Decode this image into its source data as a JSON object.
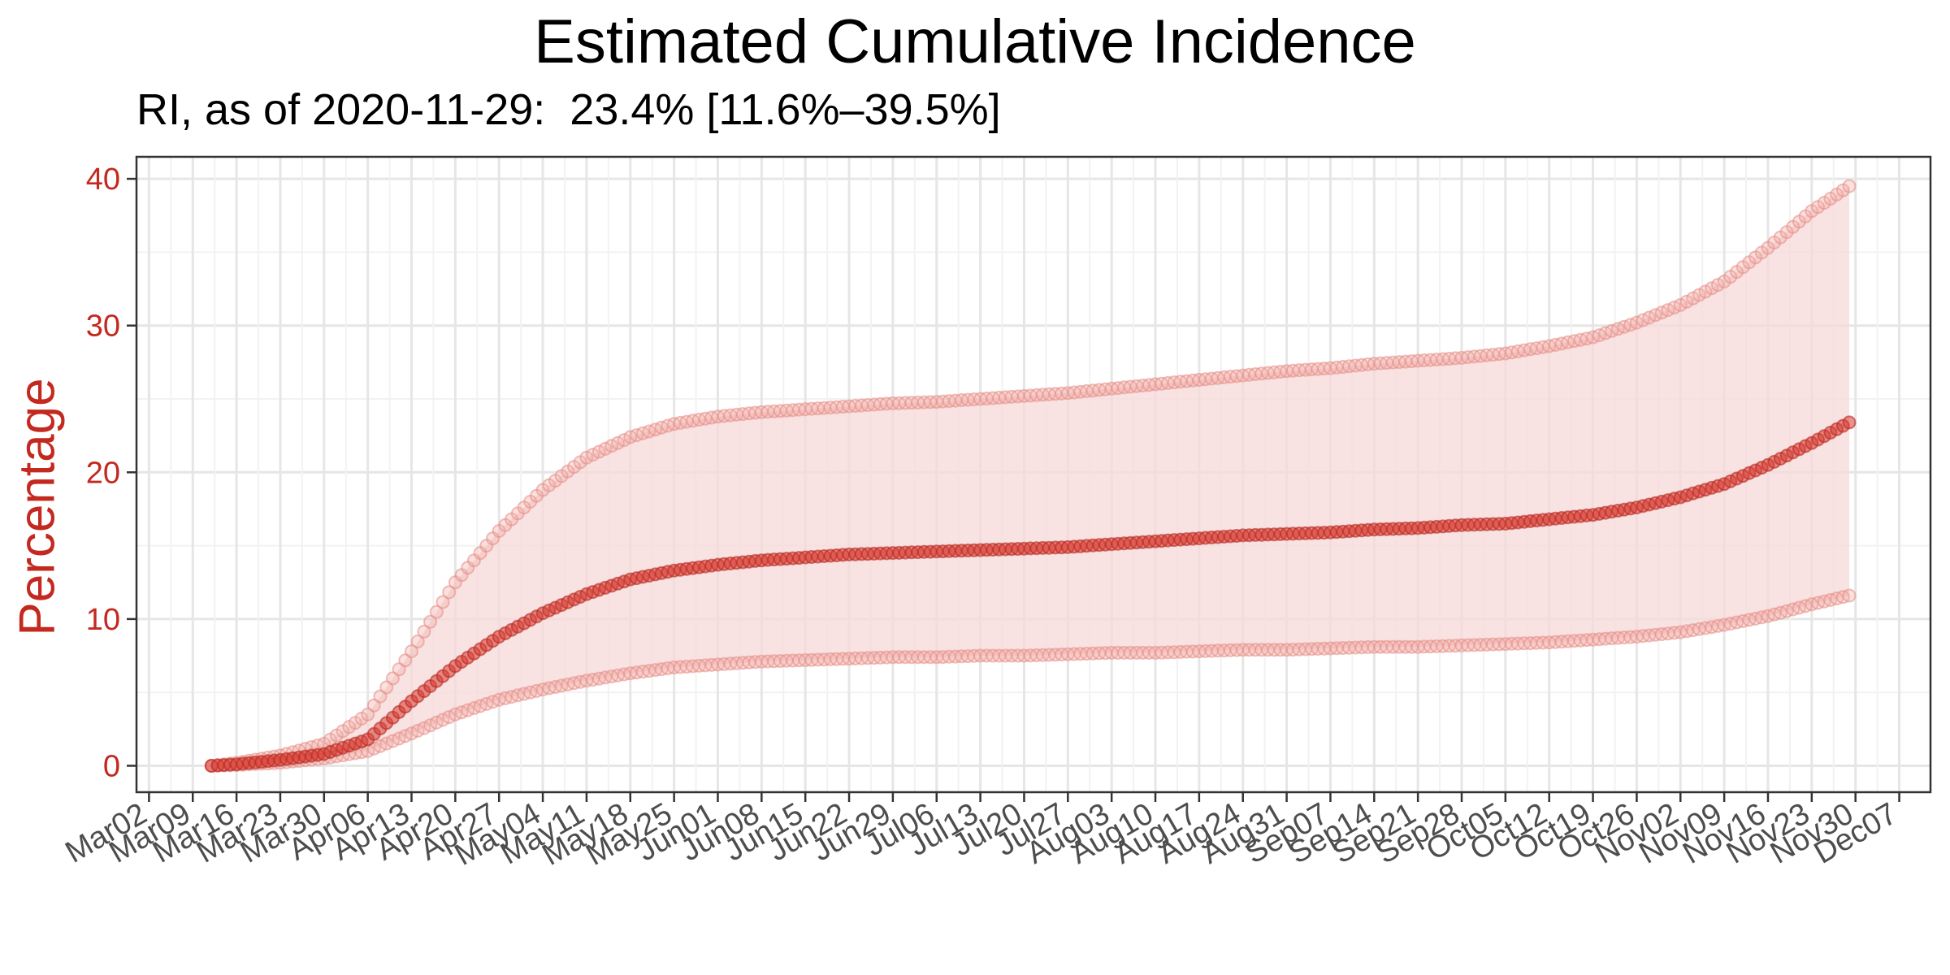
{
  "chart_data": {
    "type": "line",
    "title": "Estimated Cumulative Incidence",
    "subtitle": "RI, as of 2020-11-29:  23.4% [11.6%–39.5%]",
    "ylabel": "Percentage",
    "xlabel": "",
    "xlim": [
      "2020-02-29",
      "2020-12-12"
    ],
    "ylim": [
      -1.8,
      41.5
    ],
    "y_ticks": [
      0,
      10,
      20,
      30,
      40
    ],
    "x_ticks": [
      "Mar02",
      "Mar09",
      "Mar16",
      "Mar23",
      "Mar30",
      "Apr06",
      "Apr13",
      "Apr20",
      "Apr27",
      "May04",
      "May11",
      "May18",
      "May25",
      "Jun01",
      "Jun08",
      "Jun15",
      "Jun22",
      "Jun29",
      "Jul06",
      "Jul13",
      "Jul20",
      "Jul27",
      "Aug03",
      "Aug10",
      "Aug17",
      "Aug24",
      "Aug31",
      "Sep07",
      "Sep14",
      "Sep21",
      "Sep28",
      "Oct05",
      "Oct12",
      "Oct19",
      "Oct26",
      "Nov02",
      "Nov09",
      "Nov16",
      "Nov23",
      "Nov30",
      "Dec07"
    ],
    "x_tick_dates": [
      "2020-03-02",
      "2020-03-09",
      "2020-03-16",
      "2020-03-23",
      "2020-03-30",
      "2020-04-06",
      "2020-04-13",
      "2020-04-20",
      "2020-04-27",
      "2020-05-04",
      "2020-05-11",
      "2020-05-18",
      "2020-05-25",
      "2020-06-01",
      "2020-06-08",
      "2020-06-15",
      "2020-06-22",
      "2020-06-29",
      "2020-07-06",
      "2020-07-13",
      "2020-07-20",
      "2020-07-27",
      "2020-08-03",
      "2020-08-10",
      "2020-08-17",
      "2020-08-24",
      "2020-08-31",
      "2020-09-07",
      "2020-09-14",
      "2020-09-21",
      "2020-09-28",
      "2020-10-05",
      "2020-10-12",
      "2020-10-19",
      "2020-10-26",
      "2020-11-02",
      "2020-11-09",
      "2020-11-16",
      "2020-11-23",
      "2020-11-30",
      "2020-12-07"
    ],
    "grid": true,
    "x": [
      "2020-03-12",
      "2020-03-16",
      "2020-03-23",
      "2020-03-30",
      "2020-04-06",
      "2020-04-13",
      "2020-04-20",
      "2020-04-27",
      "2020-05-04",
      "2020-05-11",
      "2020-05-18",
      "2020-05-25",
      "2020-06-01",
      "2020-06-08",
      "2020-06-15",
      "2020-06-22",
      "2020-06-29",
      "2020-07-06",
      "2020-07-13",
      "2020-07-20",
      "2020-07-27",
      "2020-08-03",
      "2020-08-10",
      "2020-08-17",
      "2020-08-24",
      "2020-08-31",
      "2020-09-07",
      "2020-09-14",
      "2020-09-21",
      "2020-09-28",
      "2020-10-05",
      "2020-10-12",
      "2020-10-19",
      "2020-10-26",
      "2020-11-02",
      "2020-11-09",
      "2020-11-16",
      "2020-11-23",
      "2020-11-29"
    ],
    "series": [
      {
        "role": "estimate",
        "values": [
          0.0,
          0.1,
          0.4,
          0.8,
          1.8,
          4.4,
          6.8,
          8.8,
          10.4,
          11.7,
          12.7,
          13.3,
          13.7,
          14.0,
          14.2,
          14.4,
          14.5,
          14.6,
          14.7,
          14.8,
          14.9,
          15.1,
          15.3,
          15.5,
          15.7,
          15.8,
          15.9,
          16.1,
          16.2,
          16.4,
          16.5,
          16.8,
          17.1,
          17.6,
          18.3,
          19.2,
          20.5,
          22.0,
          23.4
        ]
      },
      {
        "role": "lower",
        "values": [
          0.0,
          0.05,
          0.2,
          0.5,
          1.0,
          2.2,
          3.5,
          4.5,
          5.2,
          5.8,
          6.3,
          6.7,
          6.9,
          7.1,
          7.2,
          7.3,
          7.4,
          7.4,
          7.5,
          7.5,
          7.6,
          7.7,
          7.7,
          7.8,
          7.9,
          7.9,
          8.0,
          8.1,
          8.1,
          8.2,
          8.3,
          8.4,
          8.6,
          8.8,
          9.1,
          9.6,
          10.2,
          11.0,
          11.6
        ]
      },
      {
        "role": "upper",
        "values": [
          0.0,
          0.2,
          0.7,
          1.5,
          3.5,
          7.8,
          12.5,
          16.0,
          18.8,
          21.0,
          22.4,
          23.3,
          23.8,
          24.1,
          24.3,
          24.5,
          24.7,
          24.8,
          25.0,
          25.2,
          25.4,
          25.7,
          26.0,
          26.3,
          26.6,
          26.9,
          27.1,
          27.4,
          27.6,
          27.8,
          28.1,
          28.6,
          29.2,
          30.2,
          31.4,
          33.0,
          35.3,
          37.8,
          39.5
        ]
      }
    ],
    "colors": {
      "estimate": "#d73b2f",
      "band_fill": "#f6d8d8",
      "ci_points": "#f0a9a4",
      "axis_text": "#c4291f",
      "tick_text": "#4d4d4d"
    }
  }
}
